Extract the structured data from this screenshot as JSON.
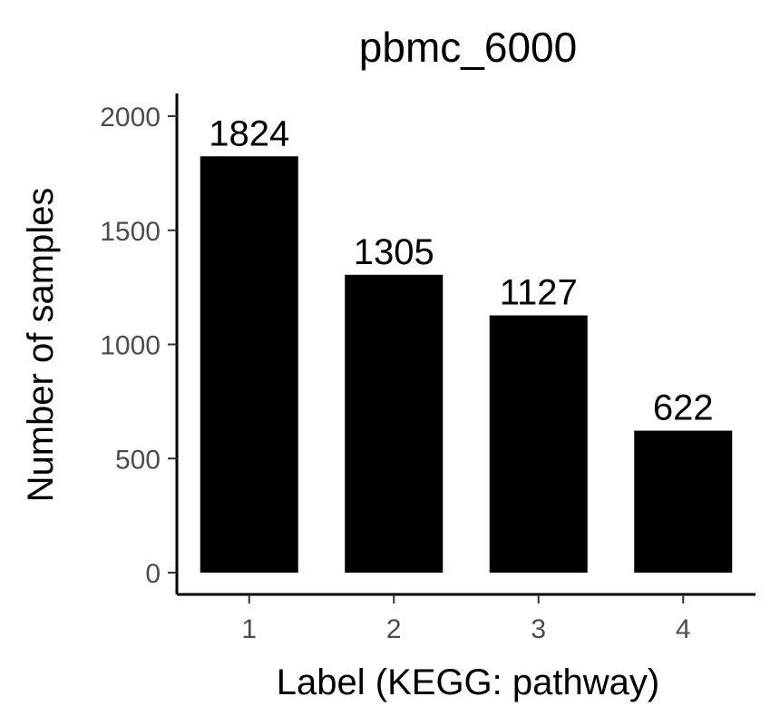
{
  "chart_data": {
    "type": "bar",
    "title": "pbmc_6000",
    "xlabel": "Label (KEGG: pathway)",
    "ylabel": "Number of samples",
    "categories": [
      "1",
      "2",
      "3",
      "4"
    ],
    "values": [
      1824,
      1305,
      1127,
      622
    ],
    "data_labels": [
      "1824",
      "1305",
      "1127",
      "622"
    ],
    "yticks": [
      0,
      500,
      1000,
      1500,
      2000
    ],
    "ytick_labels": [
      "0",
      "500",
      "1000",
      "1500",
      "2000"
    ],
    "ylim": [
      -95,
      2095
    ],
    "grid": false,
    "legend": "none",
    "bar_color": "#000000"
  }
}
